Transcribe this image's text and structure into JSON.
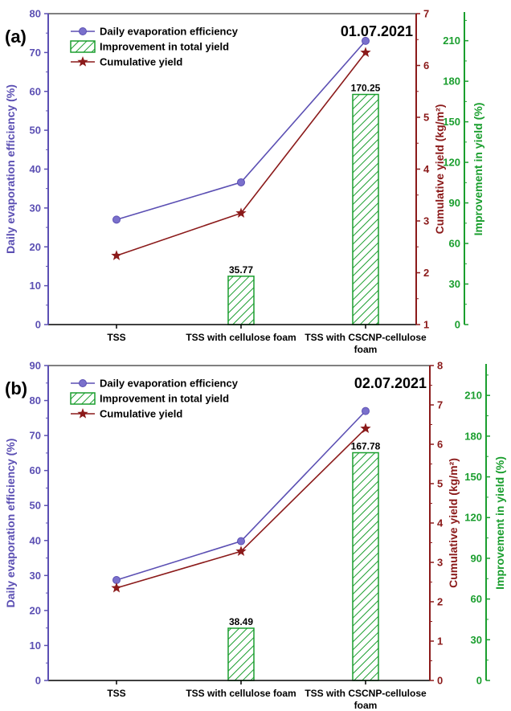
{
  "colors": {
    "efficiency": "#5b4fb3",
    "yield": "#8b1a1a",
    "improvement": "#1a9e2e"
  },
  "chart_data": [
    {
      "type": "bar+line",
      "panel_label": "(a)",
      "date": "01.07.2021",
      "categories": [
        "TSS",
        "TSS with cellulose foam",
        "TSS with CSCNP-cellulose foam"
      ],
      "category_lines": [
        [
          "TSS"
        ],
        [
          "TSS with cellulose foam"
        ],
        [
          "TSS with CSCNP-cellulose",
          "foam"
        ]
      ],
      "ylabel_left": "Daily evaporation efficiency (%)",
      "ylabel_right1": "Cumulative yield (kg/m²)",
      "ylabel_right2": "Improvement in yield (%)",
      "ylim_left": [
        0,
        80
      ],
      "yticks_left": [
        0,
        10,
        20,
        30,
        40,
        50,
        60,
        70,
        80
      ],
      "ylim_right1": [
        1,
        7
      ],
      "yticks_right1": [
        1,
        2,
        3,
        4,
        5,
        6,
        7
      ],
      "ylim_right2": [
        0,
        230
      ],
      "yticks_right2": [
        0,
        30,
        60,
        90,
        120,
        150,
        180,
        210
      ],
      "legend": [
        "Daily evaporation efficiency",
        "Improvement in total yield",
        "Cumulative yield"
      ],
      "series": [
        {
          "name": "Daily evaporation efficiency",
          "axis": "left",
          "kind": "line",
          "values": [
            27,
            36.6,
            73
          ]
        },
        {
          "name": "Improvement in total yield",
          "axis": "right2",
          "kind": "bar",
          "values": [
            null,
            35.77,
            170.25
          ],
          "labels": [
            "",
            "35.77",
            "170.25"
          ]
        },
        {
          "name": "Cumulative yield",
          "axis": "right1",
          "kind": "line",
          "values": [
            2.33,
            3.15,
            6.25
          ]
        }
      ]
    },
    {
      "type": "bar+line",
      "panel_label": "(b)",
      "date": "02.07.2021",
      "categories": [
        "TSS",
        "TSS with cellulose foam",
        "TSS with CSCNP-cellulose foam"
      ],
      "category_lines": [
        [
          "TSS"
        ],
        [
          "TSS with cellulose foam"
        ],
        [
          "TSS with CSCNP-cellulose",
          "foam"
        ]
      ],
      "ylabel_left": "Daily evaporation efficiency (%)",
      "ylabel_right1": "Cumulative yield (kg/m²)",
      "ylabel_right2": "Improvement in yield (%)",
      "ylim_left": [
        0,
        90
      ],
      "yticks_left": [
        0,
        10,
        20,
        30,
        40,
        50,
        60,
        70,
        80,
        90
      ],
      "ylim_right1": [
        0,
        8
      ],
      "yticks_right1": [
        0,
        1,
        2,
        3,
        4,
        5,
        6,
        7,
        8
      ],
      "ylim_right2": [
        0,
        232
      ],
      "yticks_right2": [
        0,
        30,
        60,
        90,
        120,
        150,
        180,
        210
      ],
      "legend": [
        "Daily evaporation efficiency",
        "Improvement in total yield",
        "Cumulative yield"
      ],
      "series": [
        {
          "name": "Daily evaporation efficiency",
          "axis": "left",
          "kind": "line",
          "values": [
            28.7,
            39.8,
            77
          ]
        },
        {
          "name": "Improvement in total yield",
          "axis": "right2",
          "kind": "bar",
          "values": [
            null,
            38.49,
            167.78
          ],
          "labels": [
            "",
            "38.49",
            "167.78"
          ]
        },
        {
          "name": "Cumulative yield",
          "axis": "right1",
          "kind": "line",
          "values": [
            2.35,
            3.28,
            6.4
          ]
        }
      ]
    }
  ]
}
